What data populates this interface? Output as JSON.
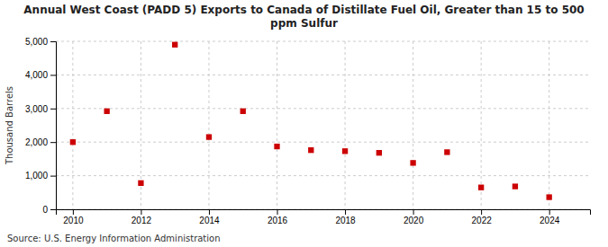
{
  "chart_data": {
    "type": "scatter",
    "title": "Annual West Coast (PADD 5) Exports to Canada of Distillate Fuel Oil, Greater than 15 to 500\nppm Sulfur",
    "ylabel": "Thousand Barrels",
    "source": "Source: U.S. Energy Information Administration",
    "x": [
      2010,
      2011,
      2012,
      2013,
      2014,
      2015,
      2016,
      2017,
      2018,
      2019,
      2020,
      2021,
      2022,
      2023,
      2024
    ],
    "values": [
      2000,
      2920,
      780,
      4900,
      2150,
      2920,
      1870,
      1760,
      1730,
      1680,
      1380,
      1700,
      650,
      680,
      360
    ],
    "color": "#cc0000",
    "marker": "square",
    "xlim": [
      2009.5,
      2025.2
    ],
    "xticks": [
      2010,
      2012,
      2014,
      2016,
      2018,
      2020,
      2022,
      2024
    ],
    "ylim": [
      0,
      5000
    ],
    "yticks": [
      0,
      {
        "value": 1000,
        "label": "1,000"
      },
      {
        "value": 2000,
        "label": "2,000"
      },
      {
        "value": 3000,
        "label": "3,000"
      },
      {
        "value": 4000,
        "label": "4,000"
      },
      {
        "value": 5000,
        "label": "5,000"
      }
    ],
    "grid": true
  }
}
